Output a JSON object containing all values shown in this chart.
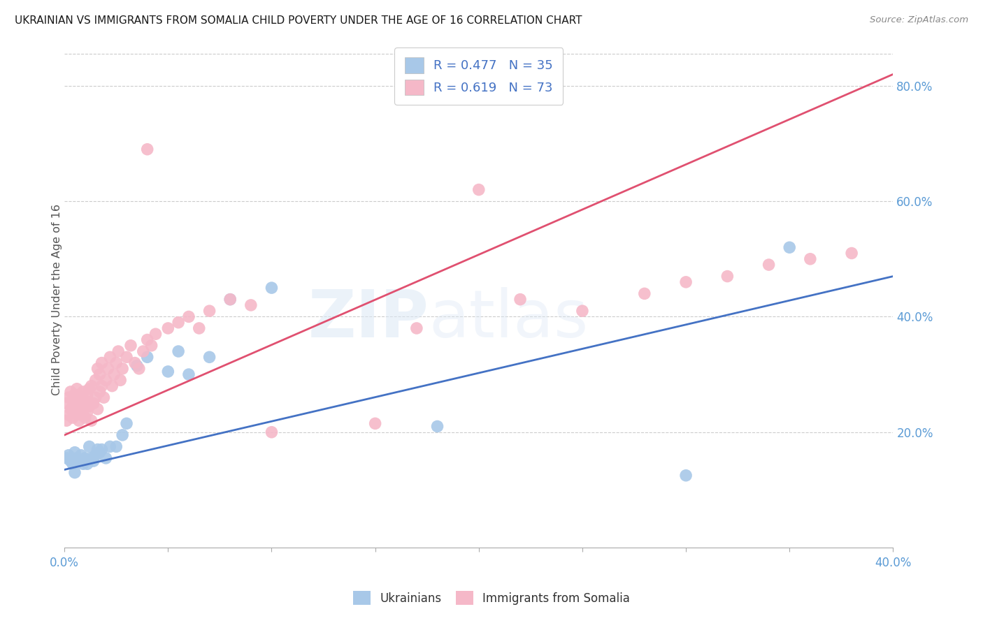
{
  "title": "UKRAINIAN VS IMMIGRANTS FROM SOMALIA CHILD POVERTY UNDER THE AGE OF 16 CORRELATION CHART",
  "source": "Source: ZipAtlas.com",
  "ylabel": "Child Poverty Under the Age of 16",
  "legend_label1": "Ukrainians",
  "legend_label2": "Immigrants from Somalia",
  "R1": 0.477,
  "N1": 35,
  "R2": 0.619,
  "N2": 73,
  "color_blue": "#A8C8E8",
  "color_pink": "#F5B8C8",
  "line_blue": "#4472C4",
  "line_pink": "#E05070",
  "background": "#FFFFFF",
  "xlim": [
    0.0,
    0.4
  ],
  "ylim": [
    0.0,
    0.86
  ],
  "ukr_x": [
    0.001,
    0.002,
    0.003,
    0.004,
    0.005,
    0.005,
    0.006,
    0.007,
    0.008,
    0.009,
    0.01,
    0.011,
    0.012,
    0.013,
    0.014,
    0.015,
    0.016,
    0.017,
    0.018,
    0.02,
    0.022,
    0.025,
    0.028,
    0.03,
    0.035,
    0.04,
    0.05,
    0.055,
    0.06,
    0.07,
    0.08,
    0.1,
    0.18,
    0.3,
    0.35
  ],
  "ukr_y": [
    0.155,
    0.16,
    0.15,
    0.145,
    0.13,
    0.165,
    0.155,
    0.15,
    0.16,
    0.145,
    0.155,
    0.145,
    0.175,
    0.155,
    0.15,
    0.16,
    0.17,
    0.165,
    0.17,
    0.155,
    0.175,
    0.175,
    0.195,
    0.215,
    0.315,
    0.33,
    0.305,
    0.34,
    0.3,
    0.33,
    0.43,
    0.45,
    0.21,
    0.125,
    0.52
  ],
  "som_x": [
    0.001,
    0.001,
    0.002,
    0.002,
    0.003,
    0.003,
    0.004,
    0.004,
    0.005,
    0.005,
    0.006,
    0.006,
    0.007,
    0.007,
    0.008,
    0.008,
    0.009,
    0.009,
    0.01,
    0.01,
    0.011,
    0.011,
    0.012,
    0.012,
    0.013,
    0.013,
    0.014,
    0.015,
    0.015,
    0.016,
    0.016,
    0.017,
    0.017,
    0.018,
    0.018,
    0.019,
    0.02,
    0.021,
    0.022,
    0.023,
    0.024,
    0.025,
    0.026,
    0.027,
    0.028,
    0.03,
    0.032,
    0.034,
    0.036,
    0.038,
    0.04,
    0.042,
    0.044,
    0.05,
    0.055,
    0.06,
    0.065,
    0.07,
    0.08,
    0.09,
    0.04,
    0.1,
    0.15,
    0.2,
    0.17,
    0.22,
    0.25,
    0.28,
    0.3,
    0.32,
    0.34,
    0.36,
    0.38
  ],
  "som_y": [
    0.22,
    0.25,
    0.23,
    0.26,
    0.24,
    0.27,
    0.225,
    0.255,
    0.235,
    0.265,
    0.245,
    0.275,
    0.22,
    0.25,
    0.23,
    0.26,
    0.24,
    0.27,
    0.225,
    0.255,
    0.235,
    0.265,
    0.245,
    0.275,
    0.22,
    0.28,
    0.25,
    0.26,
    0.29,
    0.24,
    0.31,
    0.27,
    0.3,
    0.28,
    0.32,
    0.26,
    0.29,
    0.31,
    0.33,
    0.28,
    0.3,
    0.32,
    0.34,
    0.29,
    0.31,
    0.33,
    0.35,
    0.32,
    0.31,
    0.34,
    0.36,
    0.35,
    0.37,
    0.38,
    0.39,
    0.4,
    0.38,
    0.41,
    0.43,
    0.42,
    0.69,
    0.2,
    0.215,
    0.62,
    0.38,
    0.43,
    0.41,
    0.44,
    0.46,
    0.47,
    0.49,
    0.5,
    0.51
  ]
}
